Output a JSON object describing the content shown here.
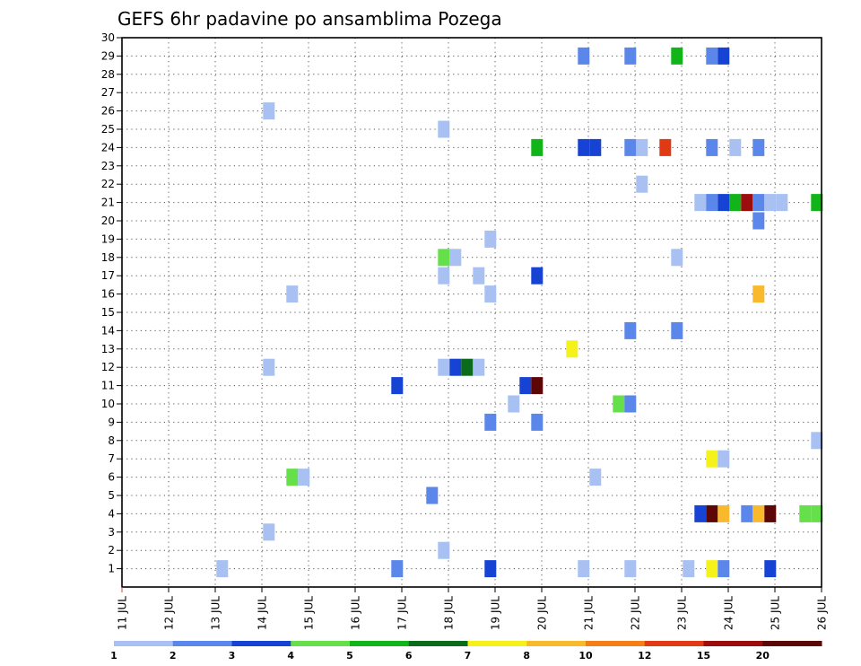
{
  "chart_data": {
    "type": "heatmap",
    "title": "GEFS 6hr padavine po ansamblima Pozega",
    "x_ticks": [
      "11 JUL",
      "12 JUL",
      "13 JUL",
      "14 JUL",
      "15 JUL",
      "16 JUL",
      "17 JUL",
      "18 JUL",
      "19 JUL",
      "20 JUL",
      "21 JUL",
      "22 JUL",
      "23 JUL",
      "24 JUL",
      "25 JUL",
      "26 JUL"
    ],
    "xlim": [
      11,
      26
    ],
    "y_ticks": [
      "1",
      "2",
      "3",
      "4",
      "5",
      "6",
      "7",
      "8",
      "9",
      "10",
      "11",
      "12",
      "13",
      "14",
      "15",
      "16",
      "17",
      "18",
      "19",
      "20",
      "21",
      "22",
      "23",
      "24",
      "25",
      "26",
      "27",
      "28",
      "29",
      "30"
    ],
    "ylim": [
      0,
      30
    ],
    "grid": true,
    "colorbar": {
      "levels": [
        "1",
        "2",
        "3",
        "4",
        "5",
        "6",
        "7",
        "8",
        "10",
        "12",
        "15",
        "20"
      ],
      "colors": [
        "#a9c1f2",
        "#5b86ea",
        "#1743d4",
        "#66e04a",
        "#11b51a",
        "#0b6b1b",
        "#f5f21a",
        "#f9b92d",
        "#f57f17",
        "#e03a15",
        "#9c0d0d",
        "#5c0606"
      ]
    },
    "cells": [
      {
        "x": 13.15,
        "y": 1,
        "c": 0
      },
      {
        "x": 14.15,
        "y": 3,
        "c": 0
      },
      {
        "x": 14.15,
        "y": 12,
        "c": 0
      },
      {
        "x": 14.15,
        "y": 26,
        "c": 0
      },
      {
        "x": 14.65,
        "y": 6,
        "c": 3
      },
      {
        "x": 14.9,
        "y": 6,
        "c": 0
      },
      {
        "x": 14.65,
        "y": 16,
        "c": 0
      },
      {
        "x": 16.9,
        "y": 1,
        "c": 1
      },
      {
        "x": 16.9,
        "y": 11,
        "c": 2
      },
      {
        "x": 17.65,
        "y": 5,
        "c": 1
      },
      {
        "x": 17.9,
        "y": 2,
        "c": 0
      },
      {
        "x": 17.9,
        "y": 12,
        "c": 0
      },
      {
        "x": 18.15,
        "y": 12,
        "c": 2
      },
      {
        "x": 18.4,
        "y": 12,
        "c": 5
      },
      {
        "x": 18.65,
        "y": 12,
        "c": 0
      },
      {
        "x": 17.9,
        "y": 17,
        "c": 0
      },
      {
        "x": 17.9,
        "y": 18,
        "c": 3
      },
      {
        "x": 18.15,
        "y": 18,
        "c": 0
      },
      {
        "x": 17.9,
        "y": 25,
        "c": 0
      },
      {
        "x": 18.65,
        "y": 17,
        "c": 0
      },
      {
        "x": 18.9,
        "y": 1,
        "c": 2
      },
      {
        "x": 18.9,
        "y": 9,
        "c": 1
      },
      {
        "x": 18.9,
        "y": 16,
        "c": 0
      },
      {
        "x": 18.9,
        "y": 19,
        "c": 0
      },
      {
        "x": 19.4,
        "y": 10,
        "c": 0
      },
      {
        "x": 19.65,
        "y": 11,
        "c": 2
      },
      {
        "x": 19.9,
        "y": 11,
        "c": 11
      },
      {
        "x": 19.9,
        "y": 9,
        "c": 1
      },
      {
        "x": 19.9,
        "y": 17,
        "c": 2
      },
      {
        "x": 19.9,
        "y": 24,
        "c": 4
      },
      {
        "x": 20.65,
        "y": 13,
        "c": 6
      },
      {
        "x": 20.9,
        "y": 1,
        "c": 0
      },
      {
        "x": 20.9,
        "y": 24,
        "c": 2
      },
      {
        "x": 21.15,
        "y": 24,
        "c": 2
      },
      {
        "x": 20.9,
        "y": 29,
        "c": 1
      },
      {
        "x": 21.15,
        "y": 6,
        "c": 0
      },
      {
        "x": 21.65,
        "y": 10,
        "c": 3
      },
      {
        "x": 21.9,
        "y": 10,
        "c": 1
      },
      {
        "x": 21.9,
        "y": 1,
        "c": 0
      },
      {
        "x": 21.9,
        "y": 14,
        "c": 1
      },
      {
        "x": 21.9,
        "y": 24,
        "c": 1
      },
      {
        "x": 22.15,
        "y": 24,
        "c": 0
      },
      {
        "x": 22.15,
        "y": 22,
        "c": 0
      },
      {
        "x": 21.9,
        "y": 29,
        "c": 1
      },
      {
        "x": 22.65,
        "y": 24,
        "c": 9
      },
      {
        "x": 22.9,
        "y": 14,
        "c": 1
      },
      {
        "x": 22.9,
        "y": 18,
        "c": 0
      },
      {
        "x": 22.9,
        "y": 29,
        "c": 4
      },
      {
        "x": 23.15,
        "y": 1,
        "c": 0
      },
      {
        "x": 23.4,
        "y": 4,
        "c": 2
      },
      {
        "x": 23.4,
        "y": 21,
        "c": 0
      },
      {
        "x": 23.65,
        "y": 1,
        "c": 6
      },
      {
        "x": 23.9,
        "y": 1,
        "c": 1
      },
      {
        "x": 23.65,
        "y": 4,
        "c": 11
      },
      {
        "x": 23.9,
        "y": 4,
        "c": 7
      },
      {
        "x": 23.65,
        "y": 7,
        "c": 6
      },
      {
        "x": 23.9,
        "y": 7,
        "c": 0
      },
      {
        "x": 23.65,
        "y": 21,
        "c": 1
      },
      {
        "x": 23.9,
        "y": 21,
        "c": 2
      },
      {
        "x": 24.15,
        "y": 21,
        "c": 4
      },
      {
        "x": 24.4,
        "y": 21,
        "c": 10
      },
      {
        "x": 24.65,
        "y": 21,
        "c": 1
      },
      {
        "x": 24.9,
        "y": 21,
        "c": 0
      },
      {
        "x": 25.15,
        "y": 21,
        "c": 0
      },
      {
        "x": 23.65,
        "y": 24,
        "c": 1
      },
      {
        "x": 24.15,
        "y": 24,
        "c": 0
      },
      {
        "x": 24.65,
        "y": 24,
        "c": 1
      },
      {
        "x": 23.65,
        "y": 29,
        "c": 1
      },
      {
        "x": 23.9,
        "y": 29,
        "c": 2
      },
      {
        "x": 24.4,
        "y": 4,
        "c": 1
      },
      {
        "x": 24.65,
        "y": 4,
        "c": 7
      },
      {
        "x": 24.9,
        "y": 4,
        "c": 11
      },
      {
        "x": 24.65,
        "y": 16,
        "c": 7
      },
      {
        "x": 24.65,
        "y": 20,
        "c": 1
      },
      {
        "x": 24.9,
        "y": 1,
        "c": 2
      },
      {
        "x": 25.65,
        "y": 4,
        "c": 3
      },
      {
        "x": 25.9,
        "y": 4,
        "c": 3
      },
      {
        "x": 25.9,
        "y": 8,
        "c": 0
      },
      {
        "x": 25.9,
        "y": 21,
        "c": 4
      }
    ]
  }
}
